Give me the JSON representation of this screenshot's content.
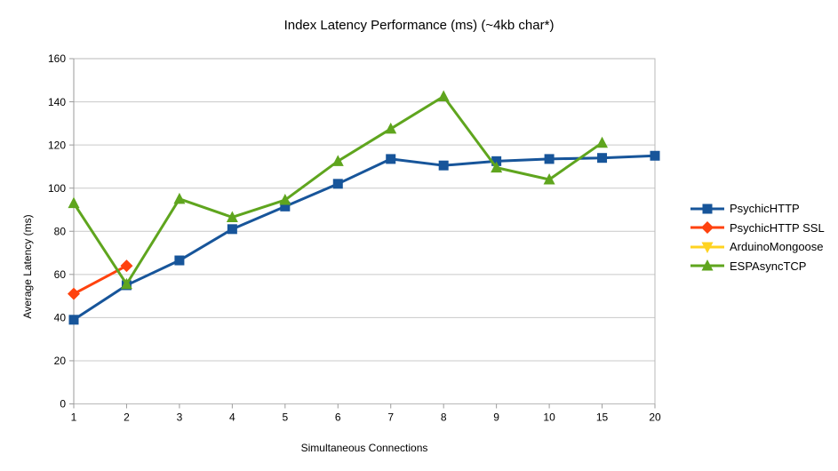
{
  "chart": {
    "title": "Index Latency Performance (ms) (~4kb char*)",
    "y_axis": {
      "title": "Average Latency (ms)"
    },
    "x_axis": {
      "title": "Simultaneous Connections"
    }
  },
  "colors": {
    "background": "#ffffff",
    "gridline": "#c9c9c9",
    "axis": "#9b9b9b",
    "plot_border": "#b8b8b8",
    "text": "#000000"
  },
  "chart_data": {
    "type": "line",
    "title": "Index Latency Performance (ms) (~4kb char*)",
    "xlabel": "Simultaneous Connections",
    "ylabel": "Average Latency (ms)",
    "categories": [
      "1",
      "2",
      "3",
      "4",
      "5",
      "6",
      "7",
      "8",
      "9",
      "10",
      "15",
      "20"
    ],
    "ylim": [
      0,
      160
    ],
    "yticks": [
      0,
      20,
      40,
      60,
      80,
      100,
      120,
      140,
      160
    ],
    "grid": "horizontal",
    "legend_position": "right",
    "series": [
      {
        "name": "PsychicHTTP",
        "color": "#17559a",
        "marker": "square",
        "values": [
          39,
          55,
          66.5,
          81,
          91.5,
          102,
          113.5,
          110.5,
          112.5,
          113.5,
          114,
          115
        ]
      },
      {
        "name": "PsychicHTTP SSL",
        "color": "#ff420e",
        "marker": "diamond",
        "values": [
          51,
          64,
          null,
          null,
          null,
          null,
          null,
          null,
          null,
          null,
          null,
          null
        ]
      },
      {
        "name": "ArduinoMongoose",
        "color": "#ffd320",
        "marker": "triangle-down",
        "values": [
          null,
          null,
          null,
          null,
          null,
          null,
          null,
          null,
          null,
          null,
          null,
          null
        ]
      },
      {
        "name": "ESPAsyncTCP",
        "color": "#5fa51e",
        "marker": "triangle-up",
        "values": [
          93,
          55.5,
          95,
          86.5,
          94.5,
          112.5,
          127.5,
          142.5,
          109.5,
          104,
          121,
          null
        ]
      }
    ]
  }
}
